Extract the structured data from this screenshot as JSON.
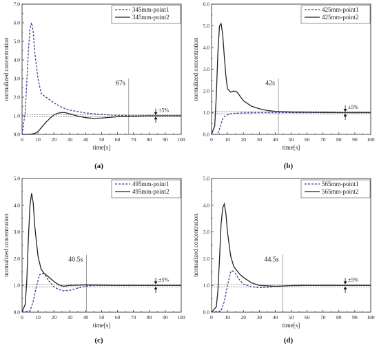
{
  "chart_data": [
    {
      "id": "a",
      "type": "line",
      "caption": "(a)",
      "xlabel": "time[s]",
      "ylabel": "normalized concentration",
      "xlim": [
        0,
        100
      ],
      "ylim": [
        0,
        7
      ],
      "x_ticks": [
        0,
        10,
        20,
        30,
        40,
        50,
        60,
        70,
        80,
        90,
        100
      ],
      "y_ticks": [
        0.0,
        1.0,
        2.0,
        3.0,
        4.0,
        5.0,
        6.0,
        7.0
      ],
      "y_tick_labels": [
        "0.0",
        "1.0",
        "2.0",
        "3.0",
        "4.0",
        "5.0",
        "6.0",
        "7.0"
      ],
      "legend_position": "top-right",
      "band_label": "±5%",
      "band": [
        0.95,
        1.05
      ],
      "annotation": {
        "text": "67s",
        "x": 67
      },
      "series": [
        {
          "name": "345mm-point1",
          "color": "#3b3b9e",
          "style": "dashed",
          "x": [
            0,
            2,
            4,
            5,
            6,
            7,
            8,
            10,
            12,
            15,
            20,
            25,
            30,
            40,
            50,
            60,
            70,
            80,
            90,
            100
          ],
          "y": [
            0,
            1.2,
            4.5,
            5.7,
            6.0,
            5.5,
            4.4,
            3.0,
            2.2,
            2.0,
            1.7,
            1.45,
            1.3,
            1.15,
            1.07,
            1.02,
            1.0,
            1.0,
            1.0,
            1.0
          ]
        },
        {
          "name": "345mm-point2",
          "color": "#222222",
          "style": "solid",
          "x": [
            0,
            5,
            8,
            10,
            12,
            15,
            18,
            20,
            23,
            26,
            28,
            30,
            35,
            40,
            45,
            50,
            60,
            70,
            80,
            90,
            100
          ],
          "y": [
            0,
            0,
            0.05,
            0.15,
            0.35,
            0.65,
            0.9,
            1.05,
            1.15,
            1.18,
            1.15,
            1.1,
            0.98,
            0.9,
            0.86,
            0.88,
            0.95,
            0.98,
            1.0,
            1.0,
            1.0
          ]
        }
      ]
    },
    {
      "id": "b",
      "type": "line",
      "caption": "(b)",
      "xlabel": "time[s]",
      "ylabel": "normalized concentration",
      "xlim": [
        0,
        100
      ],
      "ylim": [
        0,
        6
      ],
      "x_ticks": [
        0,
        10,
        20,
        30,
        40,
        50,
        60,
        70,
        80,
        90,
        100
      ],
      "y_ticks": [
        0.0,
        1.0,
        2.0,
        3.0,
        4.0,
        5.0,
        6.0
      ],
      "y_tick_labels": [
        "0.0",
        "1.0",
        "2.0",
        "3.0",
        "4.0",
        "5.0",
        "6.0"
      ],
      "legend_position": "top-right",
      "band_label": "±5%",
      "band": [
        0.95,
        1.05
      ],
      "annotation": {
        "text": "42s",
        "x": 42
      },
      "series": [
        {
          "name": "425mm-point1",
          "color": "#3b3b9e",
          "style": "dashed",
          "x": [
            0,
            3,
            4,
            5,
            6,
            7,
            8,
            10,
            12,
            15,
            20,
            30,
            40,
            50,
            60,
            70,
            80,
            90,
            100
          ],
          "y": [
            0,
            0,
            0.05,
            0.25,
            0.5,
            0.7,
            0.82,
            0.9,
            0.95,
            0.97,
            0.99,
            1.0,
            1.0,
            1.0,
            1.0,
            1.0,
            1.0,
            1.0,
            1.0
          ]
        },
        {
          "name": "425mm-point2",
          "color": "#222222",
          "style": "solid",
          "x": [
            0,
            2,
            3,
            4,
            5,
            6,
            7,
            8,
            9,
            10,
            12,
            14,
            16,
            18,
            20,
            25,
            30,
            35,
            40,
            50,
            60,
            70,
            80,
            90,
            100
          ],
          "y": [
            0,
            0.4,
            1.8,
            3.8,
            5.0,
            5.1,
            4.6,
            3.6,
            2.7,
            2.1,
            1.95,
            2.0,
            1.95,
            1.75,
            1.55,
            1.3,
            1.18,
            1.1,
            1.06,
            1.03,
            1.02,
            1.01,
            1.0,
            1.0,
            1.0
          ]
        }
      ]
    },
    {
      "id": "c",
      "type": "line",
      "caption": "(c)",
      "xlabel": "time[s]",
      "ylabel": "normalized concentration",
      "xlim": [
        0,
        100
      ],
      "ylim": [
        0,
        5
      ],
      "x_ticks": [
        0,
        10,
        20,
        30,
        40,
        50,
        60,
        70,
        80,
        90,
        100
      ],
      "y_ticks": [
        0.0,
        1.0,
        2.0,
        3.0,
        4.0,
        5.0
      ],
      "y_tick_labels": [
        "0.0",
        "1.0",
        "2.0",
        "3.0",
        "4.0",
        "5.0"
      ],
      "legend_position": "top-right",
      "band_label": "±5%",
      "band": [
        0.95,
        1.05
      ],
      "annotation": {
        "text": "40.5s",
        "x": 40.5
      },
      "series": [
        {
          "name": "495mm-point1",
          "color": "#3b3b9e",
          "style": "dashed",
          "x": [
            0,
            5,
            7,
            9,
            11,
            13,
            15,
            17,
            20,
            23,
            26,
            30,
            35,
            40,
            45,
            50,
            60,
            70,
            80,
            90,
            100
          ],
          "y": [
            0,
            0.05,
            0.4,
            0.95,
            1.4,
            1.45,
            1.35,
            1.15,
            0.95,
            0.85,
            0.8,
            0.82,
            0.9,
            0.97,
            1.0,
            1.0,
            1.0,
            1.0,
            1.0,
            1.0,
            1.0
          ]
        },
        {
          "name": "495mm-point2",
          "color": "#222222",
          "style": "solid",
          "x": [
            0,
            2,
            3,
            4,
            5,
            6,
            7,
            8,
            10,
            12,
            14,
            17,
            20,
            23,
            26,
            30,
            40,
            50,
            60,
            70,
            80,
            90,
            100
          ],
          "y": [
            0,
            0.3,
            1.2,
            2.8,
            4.0,
            4.45,
            4.1,
            3.2,
            2.1,
            1.6,
            1.45,
            1.3,
            1.15,
            1.02,
            0.97,
            1.0,
            1.02,
            1.01,
            1.0,
            1.0,
            1.0,
            1.0,
            1.0
          ]
        }
      ]
    },
    {
      "id": "d",
      "type": "line",
      "caption": "(d)",
      "xlabel": "time[s]",
      "ylabel": "normalized concentration",
      "xlim": [
        0,
        100
      ],
      "ylim": [
        0,
        5
      ],
      "x_ticks": [
        0,
        10,
        20,
        30,
        40,
        50,
        60,
        70,
        80,
        90,
        100
      ],
      "y_ticks": [
        0.0,
        1.0,
        2.0,
        3.0,
        4.0,
        5.0
      ],
      "y_tick_labels": [
        "0.0",
        "1.0",
        "2.0",
        "3.0",
        "4.0",
        "5.0"
      ],
      "legend_position": "top-right",
      "band_label": "±5%",
      "band": [
        0.95,
        1.05
      ],
      "annotation": {
        "text": "44.5s",
        "x": 44.5
      },
      "series": [
        {
          "name": "565mm-point1",
          "color": "#3b3b9e",
          "style": "dashed",
          "x": [
            0,
            6,
            8,
            10,
            12,
            13,
            15,
            17,
            20,
            25,
            30,
            35,
            40,
            50,
            60,
            70,
            80,
            90,
            100
          ],
          "y": [
            0,
            0.05,
            0.4,
            1.0,
            1.5,
            1.55,
            1.45,
            1.25,
            1.05,
            0.95,
            0.92,
            0.93,
            0.96,
            1.0,
            1.0,
            1.0,
            1.0,
            1.0,
            1.0
          ]
        },
        {
          "name": "565mm-point2",
          "color": "#222222",
          "style": "solid",
          "x": [
            0,
            3,
            4,
            5,
            6,
            7,
            8,
            9,
            10,
            12,
            14,
            16,
            18,
            20,
            25,
            30,
            40,
            50,
            60,
            70,
            80,
            90,
            100
          ],
          "y": [
            0,
            0.2,
            0.8,
            2.0,
            3.3,
            3.9,
            4.05,
            3.7,
            3.0,
            2.1,
            1.7,
            1.55,
            1.4,
            1.3,
            1.1,
            1.0,
            0.97,
            0.99,
            1.0,
            1.0,
            1.0,
            1.0,
            1.0
          ]
        }
      ]
    }
  ]
}
